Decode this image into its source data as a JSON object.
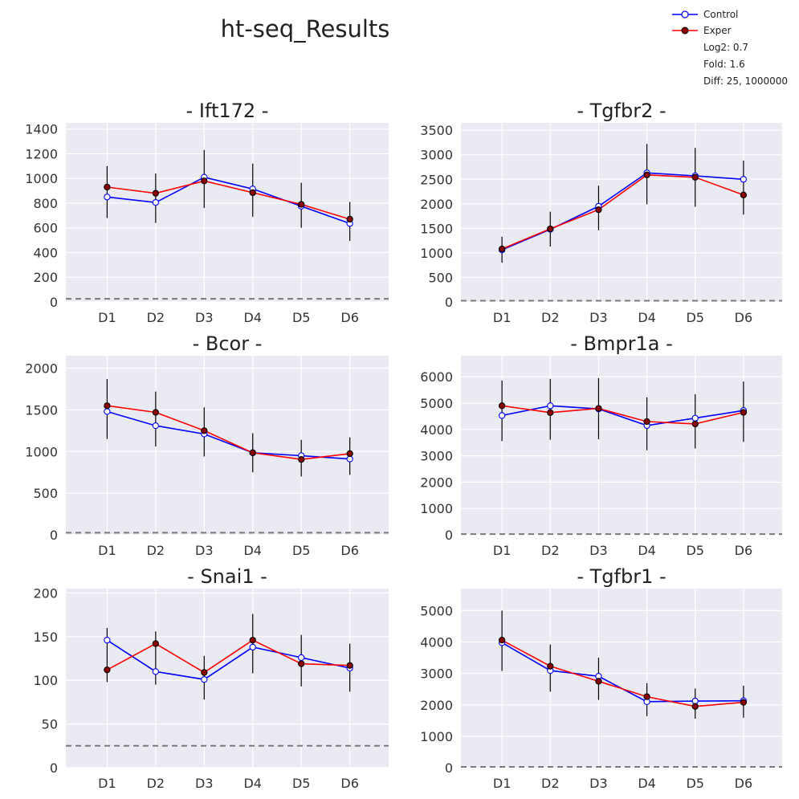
{
  "figure": {
    "title": "ht-seq_Results",
    "legend": {
      "placement": "top-right",
      "entries": [
        {
          "label": "Control",
          "color": "#0000ff",
          "marker_fill": "#ffffff"
        },
        {
          "label": "Exper",
          "color": "#ff0000",
          "marker_fill": "#8b0000"
        }
      ],
      "notes": [
        "Log2: 0.7",
        "Fold: 1.6",
        "Diff: 25, 1000000"
      ]
    }
  },
  "chart_data": [
    {
      "type": "line",
      "title": "- Ift172 -",
      "categories": [
        "D1",
        "D2",
        "D3",
        "D4",
        "D5",
        "D6"
      ],
      "ylim": [
        0,
        1450
      ],
      "yticks": [
        0,
        200,
        400,
        600,
        800,
        1000,
        1200,
        1400
      ],
      "threshold": 25,
      "grid": true,
      "series": [
        {
          "name": "Control",
          "values": [
            850,
            805,
            1010,
            915,
            775,
            635
          ]
        },
        {
          "name": "Exper",
          "values": [
            930,
            880,
            980,
            885,
            790,
            670
          ]
        }
      ],
      "error_bars": [
        [
          680,
          1100
        ],
        [
          640,
          1040
        ],
        [
          760,
          1230
        ],
        [
          690,
          1120
        ],
        [
          600,
          965
        ],
        [
          495,
          810
        ]
      ]
    },
    {
      "type": "line",
      "title": "- Tgfbr2 -",
      "categories": [
        "D1",
        "D2",
        "D3",
        "D4",
        "D5",
        "D6"
      ],
      "ylim": [
        0,
        3650
      ],
      "yticks": [
        0,
        500,
        1000,
        1500,
        2000,
        2500,
        3000,
        3500
      ],
      "threshold": 25,
      "grid": true,
      "series": [
        {
          "name": "Control",
          "values": [
            1060,
            1480,
            1950,
            2630,
            2570,
            2500
          ]
        },
        {
          "name": "Exper",
          "values": [
            1080,
            1490,
            1880,
            2590,
            2540,
            2180
          ]
        }
      ],
      "error_bars": [
        [
          800,
          1330
        ],
        [
          1130,
          1840
        ],
        [
          1460,
          2370
        ],
        [
          1990,
          3220
        ],
        [
          1940,
          3140
        ],
        [
          1780,
          2880
        ]
      ]
    },
    {
      "type": "line",
      "title": "- Bcor -",
      "categories": [
        "D1",
        "D2",
        "D3",
        "D4",
        "D5",
        "D6"
      ],
      "ylim": [
        0,
        2150
      ],
      "yticks": [
        0,
        500,
        1000,
        1500,
        2000
      ],
      "threshold": 25,
      "grid": true,
      "series": [
        {
          "name": "Control",
          "values": [
            1480,
            1310,
            1210,
            985,
            950,
            910
          ]
        },
        {
          "name": "Exper",
          "values": [
            1550,
            1470,
            1250,
            985,
            905,
            975
          ]
        }
      ],
      "error_bars": [
        [
          1150,
          1870
        ],
        [
          1060,
          1720
        ],
        [
          940,
          1530
        ],
        [
          750,
          1220
        ],
        [
          700,
          1140
        ],
        [
          720,
          1170
        ]
      ]
    },
    {
      "type": "line",
      "title": "- Bmpr1a -",
      "categories": [
        "D1",
        "D2",
        "D3",
        "D4",
        "D5",
        "D6"
      ],
      "ylim": [
        0,
        6800
      ],
      "yticks": [
        0,
        1000,
        2000,
        3000,
        4000,
        5000,
        6000
      ],
      "threshold": 25,
      "grid": true,
      "series": [
        {
          "name": "Control",
          "values": [
            4530,
            4900,
            4780,
            4150,
            4430,
            4720
          ]
        },
        {
          "name": "Exper",
          "values": [
            4900,
            4640,
            4800,
            4300,
            4210,
            4650
          ]
        }
      ],
      "error_bars": [
        [
          3560,
          5860
        ],
        [
          3610,
          5920
        ],
        [
          3630,
          5950
        ],
        [
          3210,
          5220
        ],
        [
          3280,
          5340
        ],
        [
          3530,
          5820
        ]
      ]
    },
    {
      "type": "line",
      "title": "- Snai1 -",
      "categories": [
        "D1",
        "D2",
        "D3",
        "D4",
        "D5",
        "D6"
      ],
      "ylim": [
        0,
        205
      ],
      "yticks": [
        0,
        50,
        100,
        150,
        200
      ],
      "threshold": 25,
      "grid": true,
      "series": [
        {
          "name": "Control",
          "values": [
            146,
            110,
            101,
            138,
            126,
            114
          ]
        },
        {
          "name": "Exper",
          "values": [
            112,
            142,
            109,
            146,
            119,
            117
          ]
        }
      ],
      "error_bars": [
        [
          98,
          160
        ],
        [
          95,
          156
        ],
        [
          78,
          128
        ],
        [
          108,
          176
        ],
        [
          93,
          152
        ],
        [
          87,
          142
        ]
      ]
    },
    {
      "type": "line",
      "title": "- Tgfbr1 -",
      "categories": [
        "D1",
        "D2",
        "D3",
        "D4",
        "D5",
        "D6"
      ],
      "ylim": [
        0,
        5700
      ],
      "yticks": [
        0,
        1000,
        2000,
        3000,
        4000,
        5000
      ],
      "threshold": 25,
      "grid": true,
      "series": [
        {
          "name": "Control",
          "values": [
            3980,
            3090,
            2910,
            2100,
            2120,
            2130
          ]
        },
        {
          "name": "Exper",
          "values": [
            4060,
            3230,
            2750,
            2260,
            1950,
            2080
          ]
        }
      ],
      "error_bars": [
        [
          3080,
          5000
        ],
        [
          2420,
          3920
        ],
        [
          2160,
          3500
        ],
        [
          1640,
          2690
        ],
        [
          1560,
          2520
        ],
        [
          1590,
          2610
        ]
      ]
    }
  ]
}
